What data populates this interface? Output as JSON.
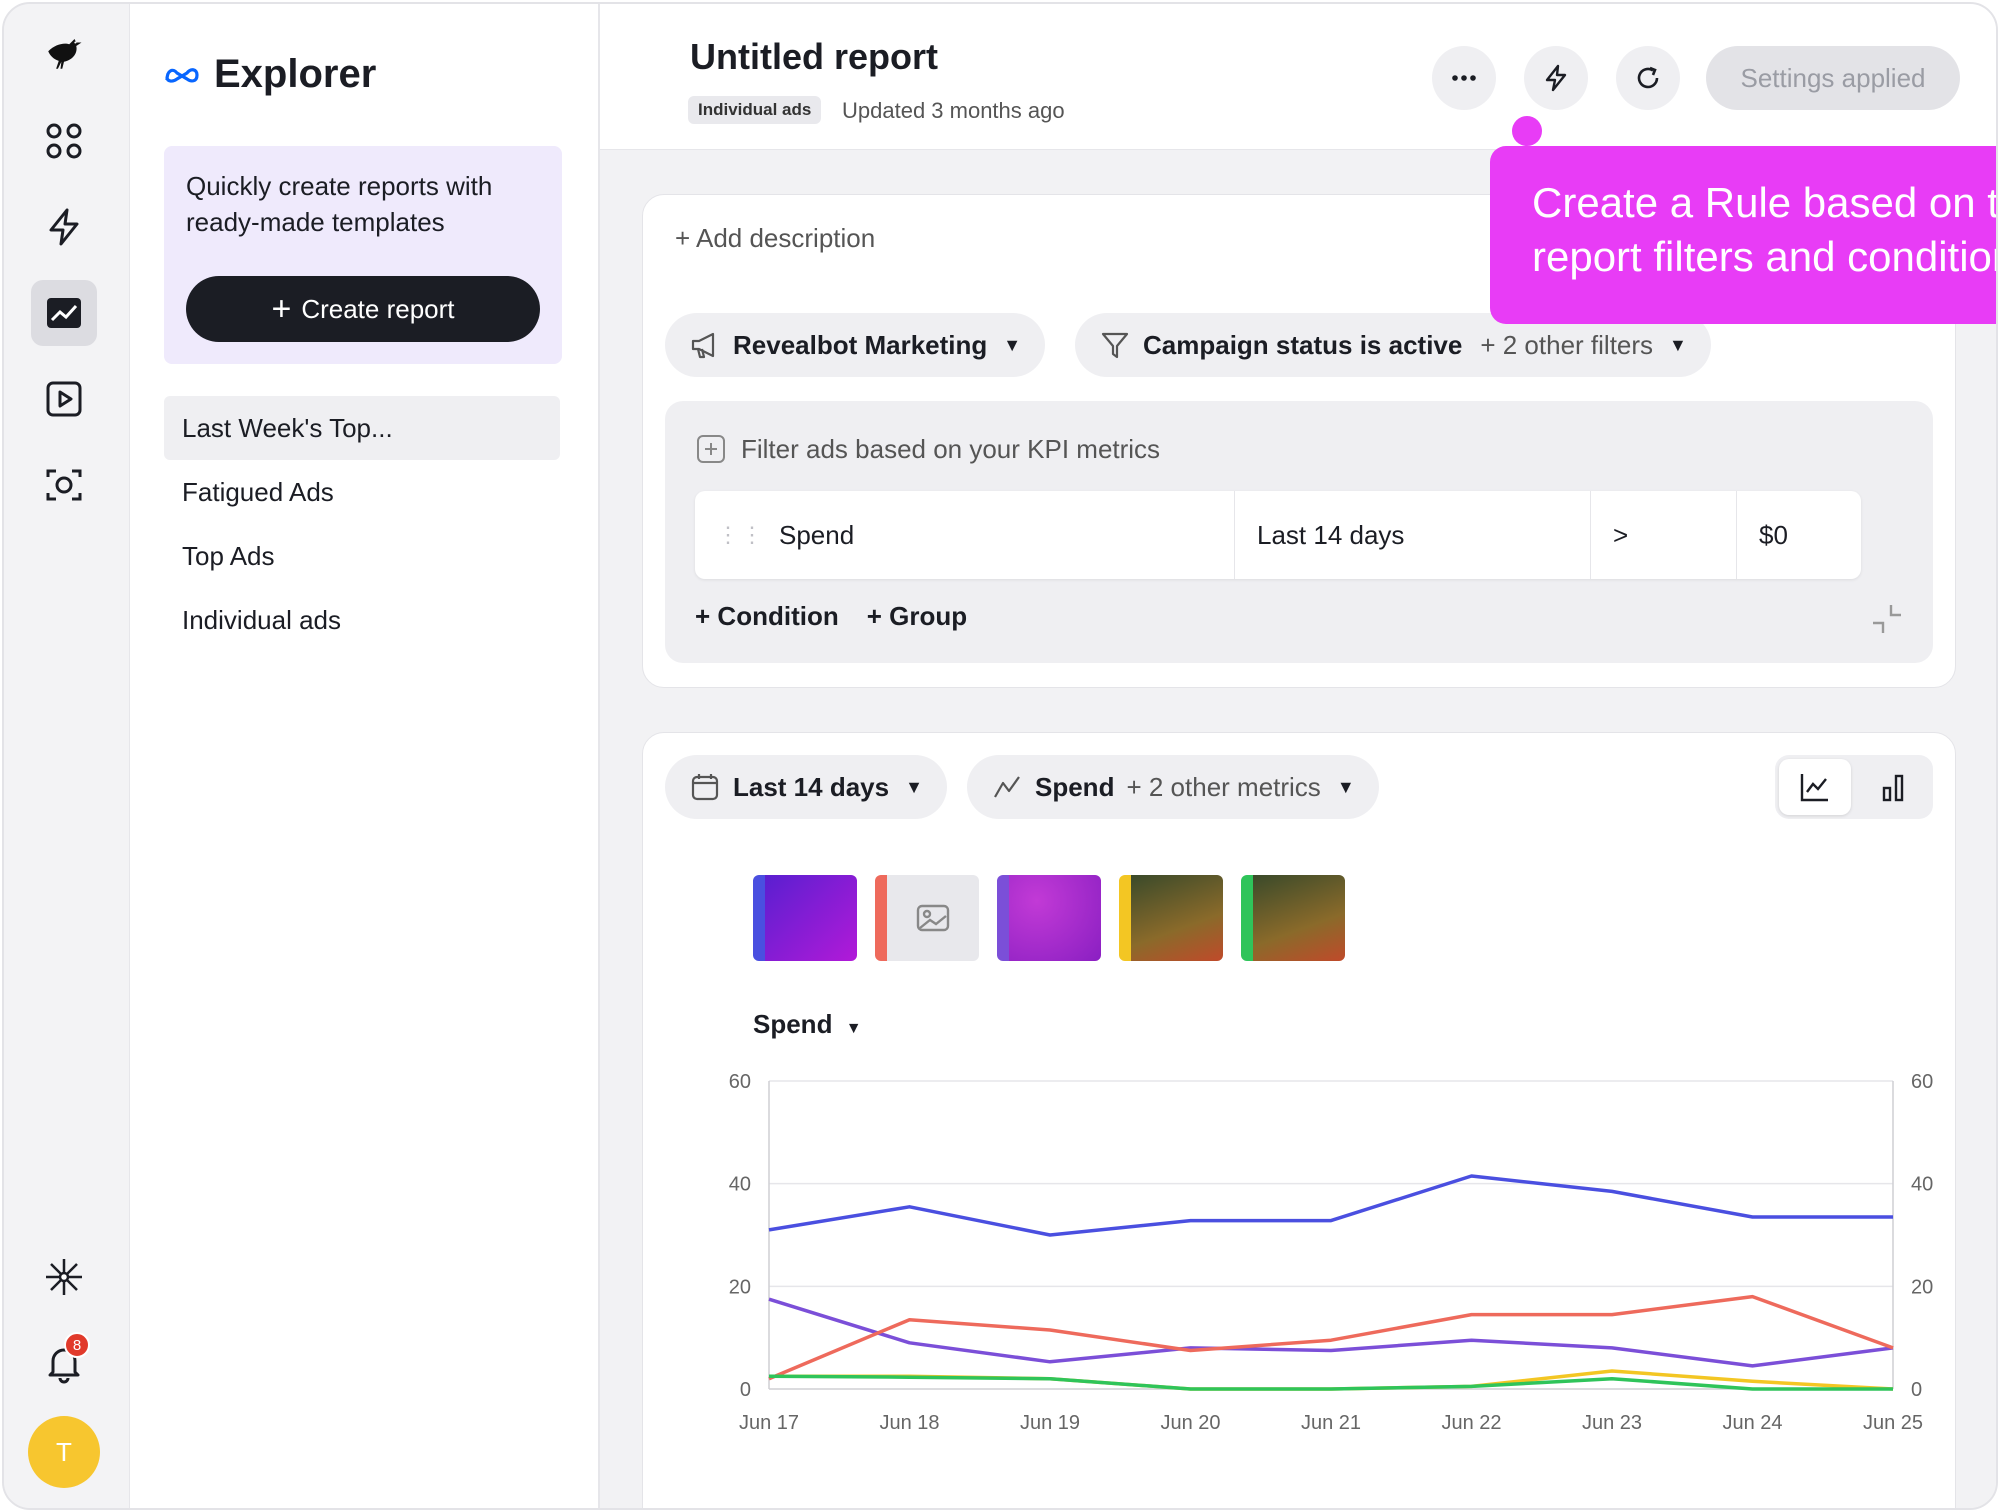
{
  "rail": {
    "items": [
      "logo",
      "apps",
      "automations",
      "reports",
      "media",
      "creative-scan"
    ],
    "notification_count": "8",
    "avatar_initial": "T"
  },
  "explorer": {
    "title": "Explorer",
    "promo_text": "Quickly create reports with ready-made templates",
    "create_button": "Create report",
    "reports": [
      {
        "label": "Last Week's Top..."
      },
      {
        "label": "Fatigued Ads"
      },
      {
        "label": "Top Ads"
      },
      {
        "label": "Individual ads"
      }
    ]
  },
  "header": {
    "title": "Untitled report",
    "tag": "Individual ads",
    "updated": "Updated 3 months ago",
    "settings_button": "Settings applied"
  },
  "tooltip": {
    "text": "Create a Rule based on this report filters and conditions"
  },
  "filters": {
    "add_description": "+ Add description",
    "account": "Revealbot Marketing",
    "status_filter": "Campaign status is active",
    "other_filters": "+ 2 other filters",
    "kpi_label": "Filter ads based on your KPI metrics",
    "condition": {
      "metric": "Spend",
      "period": "Last 14 days",
      "operator": ">",
      "value": "$0"
    },
    "add_condition": "Condition",
    "add_group": "Group"
  },
  "chart_controls": {
    "date_range": "Last 14 days",
    "metric": "Spend",
    "other_metrics": "+ 2 other metrics",
    "metric_selector": "Spend"
  },
  "colors": {
    "accent_pink": "#e83cf6",
    "series_blue": "#4a4fe0",
    "series_purple": "#7b4fd8",
    "series_red": "#ee6a5c",
    "series_green": "#2fc45a",
    "series_yellow": "#f3c623"
  },
  "chart_data": {
    "type": "line",
    "x": [
      "Jun 17",
      "Jun 18",
      "Jun 19",
      "Jun 20",
      "Jun 21",
      "Jun 22",
      "Jun 23",
      "Jun 24",
      "Jun 25"
    ],
    "ylim": [
      0,
      60
    ],
    "yticks": [
      0,
      20,
      40,
      60
    ],
    "grid": true,
    "series": [
      {
        "color": "#4a4fe0",
        "values": [
          31,
          35.5,
          30,
          32.8,
          32.8,
          41.5,
          38.5,
          33.5,
          33.5
        ]
      },
      {
        "color": "#7b4fd8",
        "values": [
          17.5,
          9,
          5.3,
          8,
          7.5,
          9.5,
          8,
          4.5,
          8
        ]
      },
      {
        "color": "#ee6a5c",
        "values": [
          2,
          13.5,
          11.5,
          7.5,
          9.5,
          14.5,
          14.5,
          18,
          8
        ]
      },
      {
        "color": "#f3c623",
        "values": [
          2.5,
          2.5,
          2,
          0,
          0,
          0.5,
          3.5,
          1.5,
          0
        ]
      },
      {
        "color": "#2fc45a",
        "values": [
          2.5,
          2.3,
          2,
          0,
          0,
          0.5,
          2,
          0,
          0
        ]
      }
    ]
  }
}
